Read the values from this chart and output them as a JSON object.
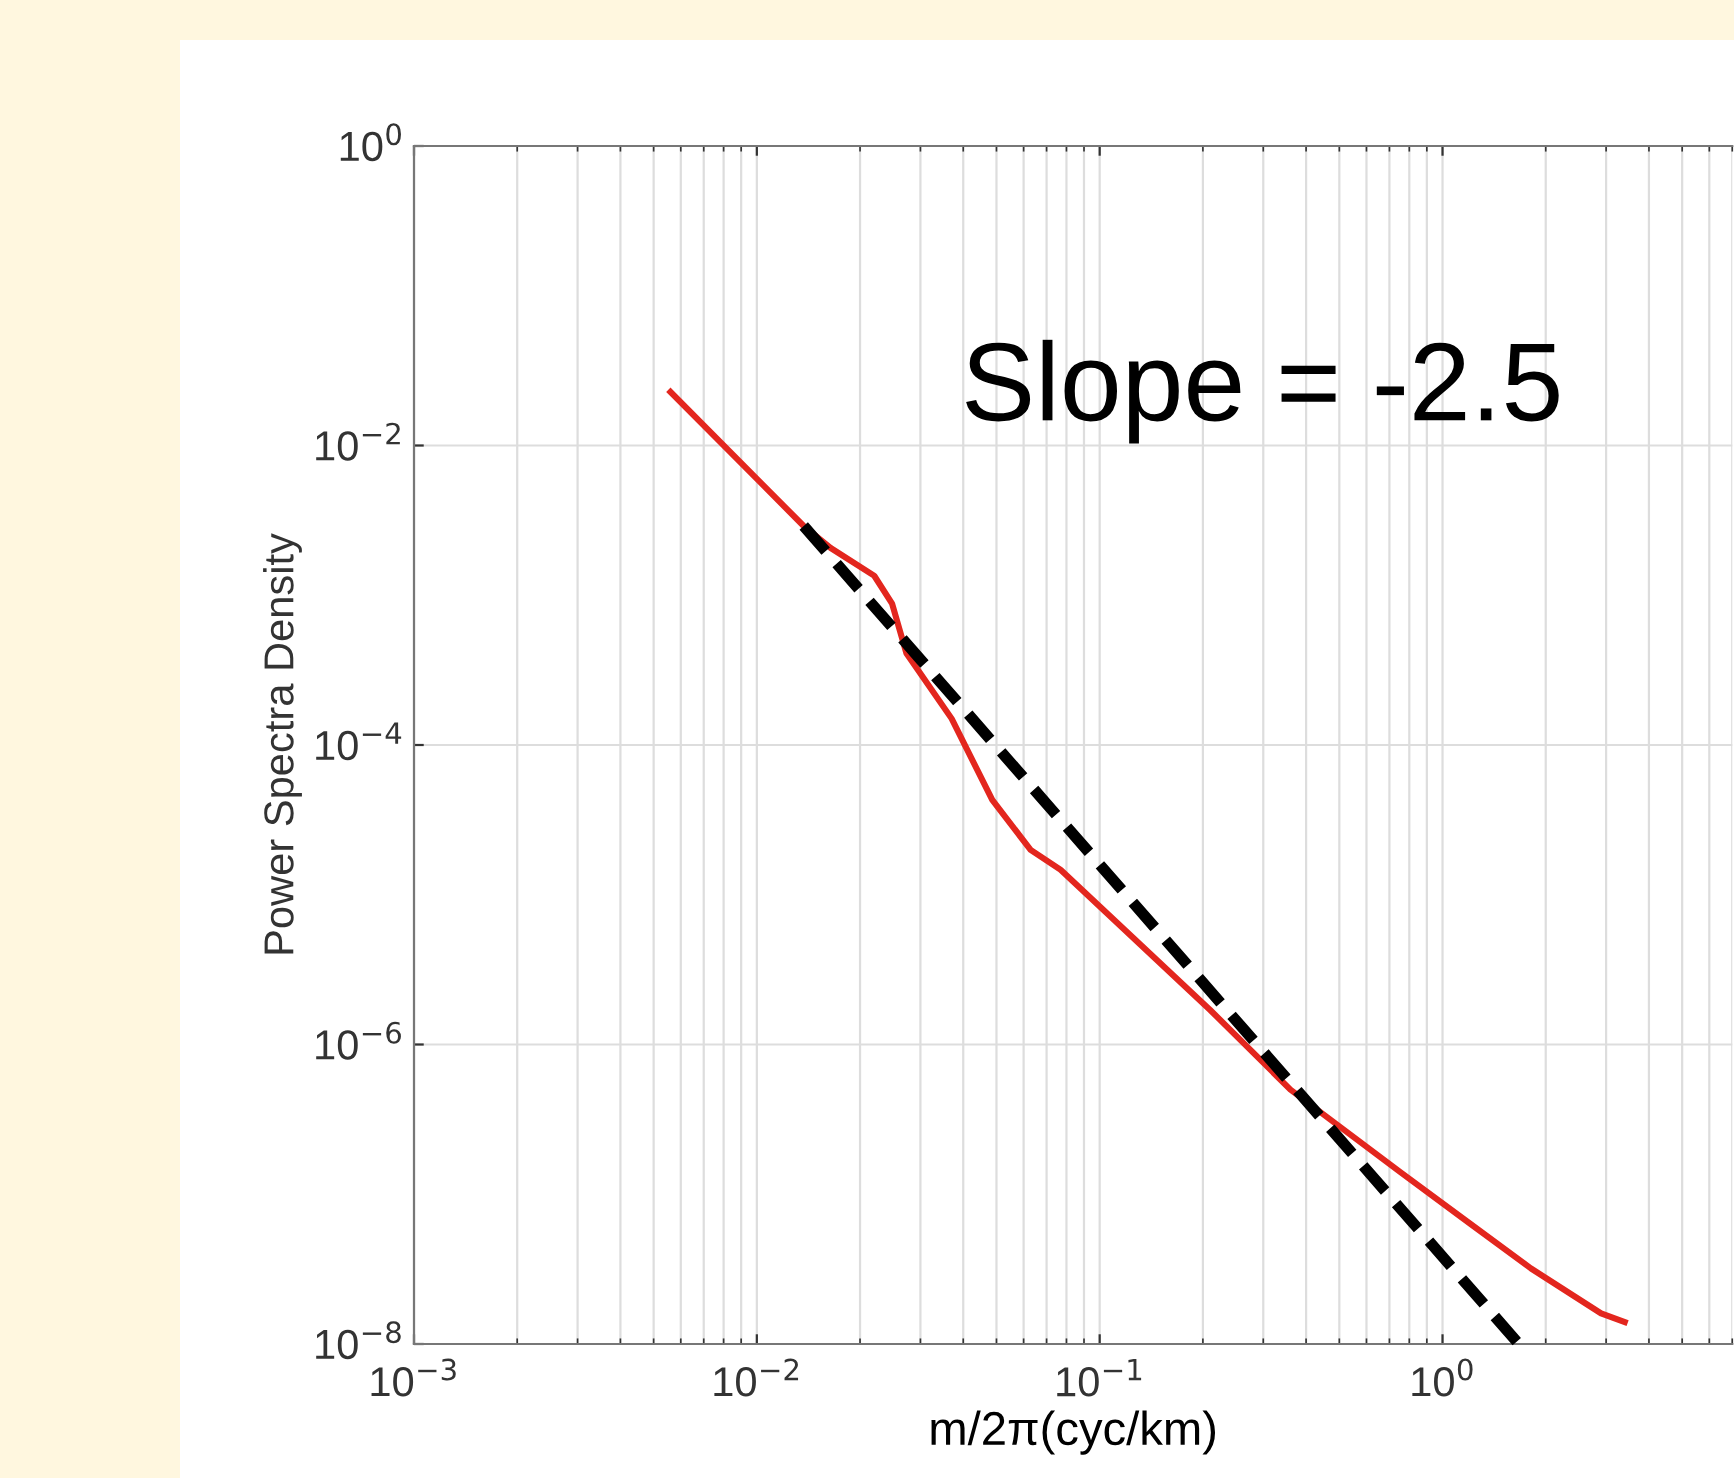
{
  "chart_data": {
    "type": "line",
    "xlabel": "m/2π(cyc/km)",
    "ylabel": "Power Spectra Density",
    "log": "xy",
    "grid": true,
    "marker": "none",
    "xlim": [
      0.001,
      7
    ],
    "ylim": [
      1e-08,
      1
    ],
    "xticks": [
      {
        "value": 0.001,
        "label": "10$^{−3}$"
      },
      {
        "value": 0.01,
        "label": "10$^{−2}$"
      },
      {
        "value": 0.1,
        "label": "10$^{−1}$"
      },
      {
        "value": 1,
        "label": "10$^{0}$"
      }
    ],
    "yticks": [
      {
        "value": 1e-08,
        "label": "10$^{−8}$"
      },
      {
        "value": 1e-06,
        "label": "10$^{−6}$"
      },
      {
        "value": 0.0001,
        "label": "10$^{−4}$"
      },
      {
        "value": 0.01,
        "label": "10$^{−2}$"
      },
      {
        "value": 1,
        "label": "10$^{0}$"
      }
    ],
    "annotations": [
      "Slope = -2.5"
    ],
    "series": [
      {
        "color": "#e3261e",
        "line_style": "solid",
        "x": [
          0.0056,
          0.0137,
          0.0164,
          0.022,
          0.0248,
          0.0273,
          0.037,
          0.0486,
          0.0628,
          0.0769,
          0.21,
          0.36,
          0.755,
          1.21,
          1.81,
          2.9,
          3.4
        ],
        "values": [
          0.0228,
          0.0029,
          0.00207,
          0.00135,
          0.00088,
          0.00041,
          0.00015,
          4.3e-05,
          2e-05,
          1.47e-05,
          1.7e-06,
          5e-07,
          1.4e-07,
          6.3e-08,
          3.2e-08,
          1.6e-08,
          1.4e-08
        ]
      },
      {
        "color": "#000000",
        "line_style": "dashed",
        "x": [
          0.0137,
          1.67
        ],
        "values": [
          0.0029,
          1e-08
        ]
      }
    ]
  }
}
